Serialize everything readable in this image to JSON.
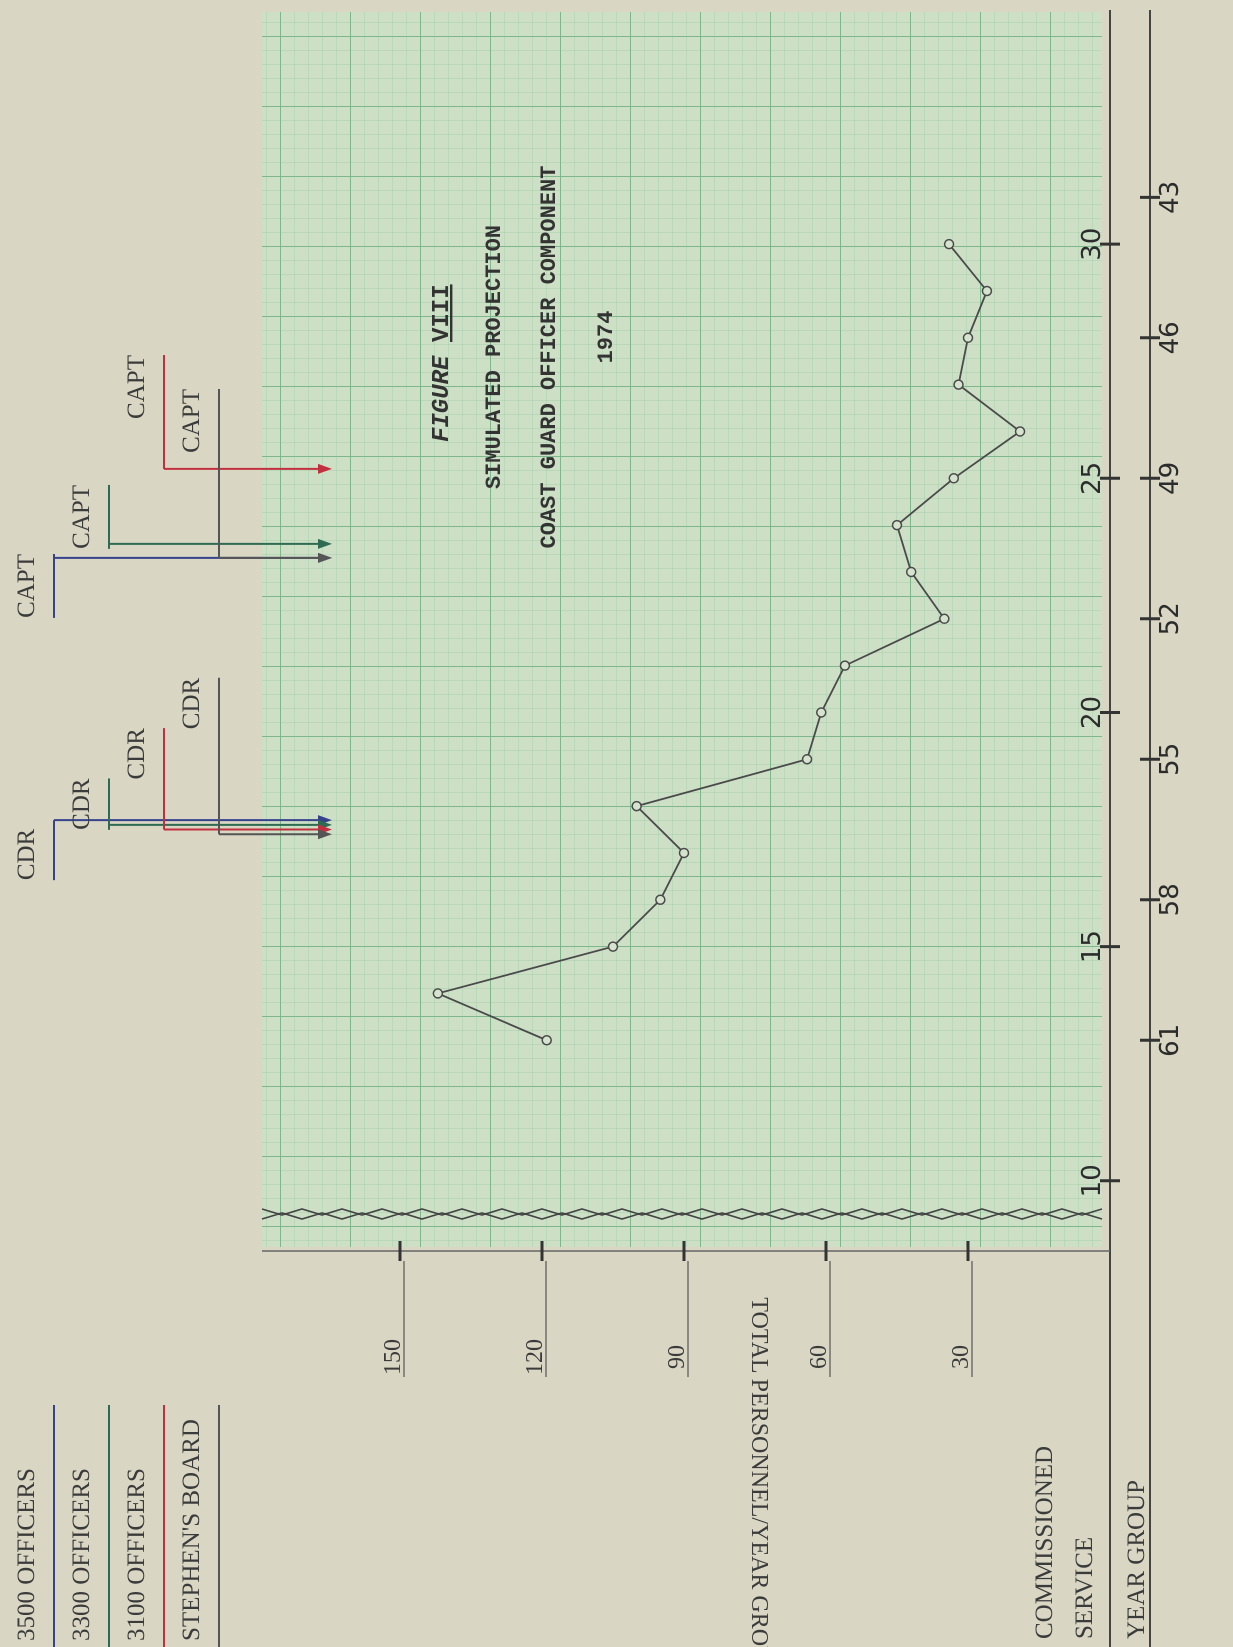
{
  "chart_data": {
    "type": "line",
    "title_label": "FIGURE",
    "title_number": "VIII",
    "subtitle": "SIMULATED PROJECTION",
    "subtitle2": "COAST GUARD OFFICER COMPONENT",
    "year": "1974",
    "ylabel": "TOTAL PERSONNEL/YEAR GROUP",
    "xlabel": "COMMISSIONED SERVICE",
    "x2label": "YEAR GROUP",
    "x": [
      13,
      14,
      15,
      16,
      17,
      18,
      19,
      20,
      21,
      22,
      23,
      24,
      25,
      26,
      27,
      28,
      29,
      30
    ],
    "values": [
      119,
      142,
      105,
      95,
      90,
      100,
      64,
      61,
      56,
      35,
      42,
      45,
      33,
      19,
      32,
      30,
      26,
      34
    ],
    "color": "#4a4a4a",
    "xlim": [
      8.5,
      35
    ],
    "xticks": [
      10,
      15,
      20,
      25,
      30
    ],
    "x2lim": [
      65.5,
      39
    ],
    "x2ticks": [
      61,
      58,
      55,
      52,
      49,
      46,
      43
    ],
    "ylim": [
      0,
      180
    ],
    "yticks": [
      30,
      60,
      90,
      120,
      150
    ],
    "promotions": [
      {
        "name": "3500 OFFICERS",
        "color": "#36428c",
        "markers": [
          {
            "label": "CDR",
            "x": 17.7
          },
          {
            "label": "CAPT",
            "x": 23.3
          }
        ]
      },
      {
        "name": "3300 OFFICERS",
        "color": "#2e6b52",
        "markers": [
          {
            "label": "CDR",
            "x": 17.6
          },
          {
            "label": "CAPT",
            "x": 23.6
          }
        ]
      },
      {
        "name": "3100 OFFICERS",
        "color": "#c2303f",
        "markers": [
          {
            "label": "CDR",
            "x": 17.5
          },
          {
            "label": "CAPT",
            "x": 25.2
          }
        ]
      },
      {
        "name": "STEPHEN'S BOARD",
        "color": "#555555",
        "markers": [
          {
            "label": "CDR",
            "x": 17.4
          },
          {
            "label": "CAPT",
            "x": 23.3
          }
        ]
      }
    ]
  }
}
